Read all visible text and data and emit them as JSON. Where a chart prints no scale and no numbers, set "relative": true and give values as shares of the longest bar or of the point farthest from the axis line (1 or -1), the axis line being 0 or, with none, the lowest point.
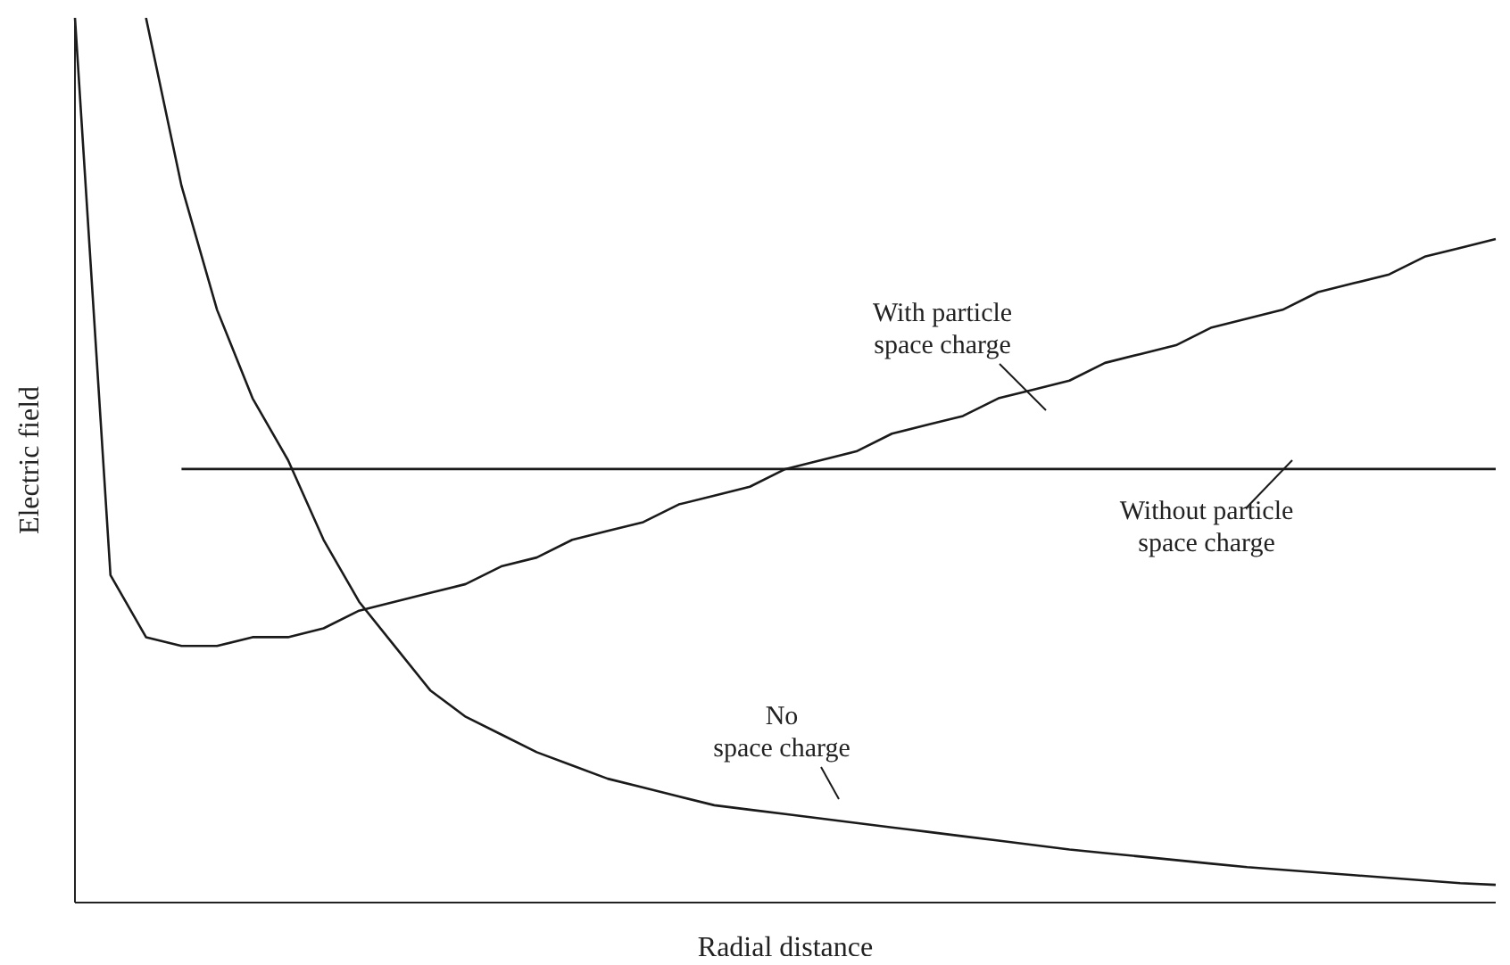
{
  "chart_data": {
    "type": "line",
    "xlabel": "Radial distance",
    "ylabel": "Electric field",
    "relative": true,
    "categories": [
      null,
      null,
      null,
      null,
      null,
      null,
      null,
      null,
      null,
      null,
      null,
      null,
      null,
      null,
      null,
      null,
      null,
      null,
      null,
      null,
      null,
      null,
      null,
      null,
      null,
      null,
      null,
      null,
      null,
      null,
      null,
      null,
      null,
      null,
      null,
      null,
      null,
      null,
      null,
      null,
      null
    ],
    "series": [
      {
        "name": "With particle\nspace charge",
        "color": "#1a1a1a",
        "values": [
          1.0,
          0.37,
          0.3,
          0.29,
          0.29,
          0.3,
          0.3,
          0.31,
          0.33,
          0.34,
          0.35,
          0.36,
          0.38,
          0.39,
          0.41,
          0.42,
          0.43,
          0.45,
          0.46,
          0.47,
          0.49,
          0.5,
          0.51,
          0.53,
          0.54,
          0.55,
          0.57,
          0.58,
          0.59,
          0.61,
          0.62,
          0.63,
          0.65,
          0.66,
          0.67,
          0.69,
          0.7,
          0.71,
          0.73,
          0.74,
          0.75
        ]
      },
      {
        "name": "Without particle\nspace charge",
        "color": "#1a1a1a",
        "values": [
          null,
          null,
          null,
          0.49,
          0.49,
          0.49,
          0.49,
          0.49,
          0.49,
          0.49,
          0.49,
          0.49,
          0.49,
          0.49,
          0.49,
          0.49,
          0.49,
          0.49,
          0.49,
          0.49,
          0.49,
          0.49,
          0.49,
          0.49,
          0.49,
          0.49,
          0.49,
          0.49,
          0.49,
          0.49,
          0.49,
          0.49,
          0.49,
          0.49,
          0.49,
          0.49,
          0.49,
          0.49,
          0.49,
          0.49,
          0.49
        ]
      },
      {
        "name": "No\nspace charge",
        "color": "#1a1a1a",
        "values": [
          null,
          null,
          1.0,
          0.81,
          0.67,
          0.57,
          0.5,
          0.41,
          0.34,
          0.29,
          0.24,
          0.21,
          0.19,
          0.17,
          0.155,
          0.14,
          0.13,
          0.12,
          0.11,
          0.105,
          0.1,
          0.095,
          0.09,
          0.085,
          0.08,
          0.075,
          0.07,
          0.065,
          0.06,
          0.056,
          0.052,
          0.048,
          0.044,
          0.04,
          0.037,
          0.034,
          0.031,
          0.028,
          0.025,
          0.022,
          0.02
        ]
      }
    ]
  }
}
